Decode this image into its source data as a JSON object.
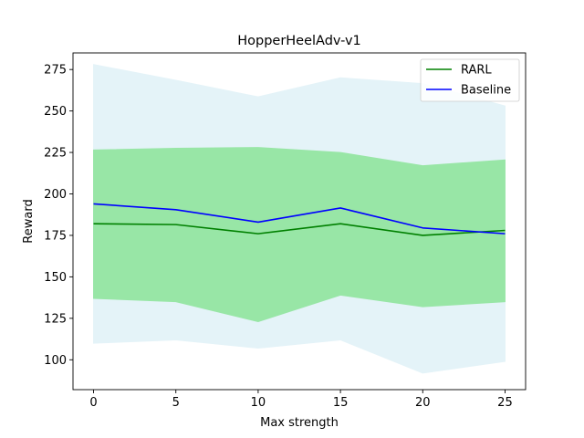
{
  "chart_data": {
    "type": "line",
    "title": "HopperHeelAdv-v1",
    "xlabel": "Max strength",
    "ylabel": "Reward",
    "x": [
      0,
      5,
      10,
      15,
      20,
      25
    ],
    "xlim": [
      -1.25,
      26.25
    ],
    "ylim": [
      82,
      285
    ],
    "xticks": [
      0,
      5,
      10,
      15,
      20,
      25
    ],
    "yticks": [
      100,
      125,
      150,
      175,
      200,
      225,
      250,
      275
    ],
    "grid": false,
    "legend_position": "upper-right",
    "series": [
      {
        "name": "RARL",
        "color": "#008000",
        "band_color": "#98e6a6",
        "values": [
          182,
          181.5,
          176,
          182,
          175,
          178
        ],
        "lower": [
          137,
          135,
          123,
          139,
          132,
          135
        ],
        "upper": [
          226.5,
          227.5,
          228,
          225,
          217,
          220.5
        ]
      },
      {
        "name": "Baseline",
        "color": "#0000ff",
        "band_color": "#e4f3f8",
        "values": [
          194,
          190.5,
          183,
          191.5,
          179.5,
          176
        ],
        "lower": [
          110,
          112,
          107,
          112,
          92,
          99
        ],
        "upper": [
          278,
          268.5,
          258.5,
          270,
          266.5,
          253
        ]
      }
    ]
  }
}
